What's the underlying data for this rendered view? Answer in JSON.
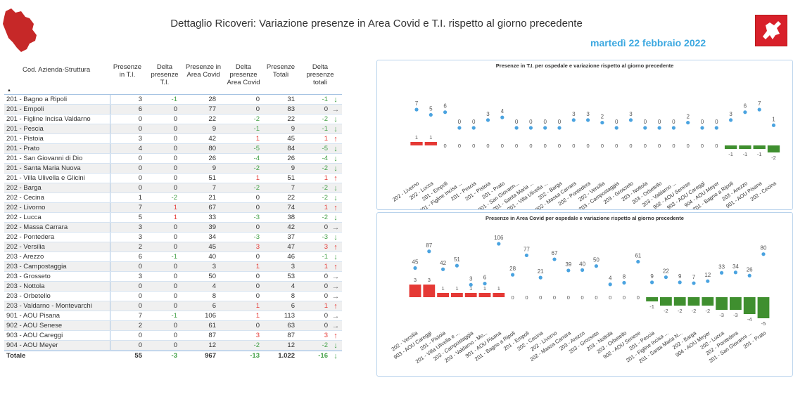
{
  "header": {
    "title": "Dettaglio Ricoveri: Variazione presenze in Area Covid e T.I. rispetto al giorno precedente",
    "date": "martedì 22 febbraio 2022"
  },
  "colors": {
    "accent": "#3aa7e0",
    "positive": "#e53935",
    "negative": "#43a047",
    "bar_red": "#e53935",
    "bar_green": "#3f8f2f",
    "dot": "#4aa3e0"
  },
  "table": {
    "headers": {
      "name": "Cod. Azienda-Struttura",
      "ti": "Presenze in T.I.",
      "dti": "Delta presenze T.I.",
      "ac": "Presenze in Area Covid",
      "dac": "Delta presenze Area Covid",
      "tot": "Presenze Totali",
      "dtot": "Delta presenze totali"
    },
    "rows": [
      {
        "name": "201 - Bagno a Ripoli",
        "ti": "3",
        "dti": "-1",
        "ac": "28",
        "dac": "0",
        "tot": "31",
        "dtot": "-1",
        "trend": "down"
      },
      {
        "name": "201 - Empoli",
        "ti": "6",
        "dti": "0",
        "ac": "77",
        "dac": "0",
        "tot": "83",
        "dtot": "0",
        "trend": "flat"
      },
      {
        "name": "201 - Figline Incisa Valdarno",
        "ti": "0",
        "dti": "0",
        "ac": "22",
        "dac": "-2",
        "tot": "22",
        "dtot": "-2",
        "trend": "down"
      },
      {
        "name": "201 - Pescia",
        "ti": "0",
        "dti": "0",
        "ac": "9",
        "dac": "-1",
        "tot": "9",
        "dtot": "-1",
        "trend": "down"
      },
      {
        "name": "201 - Pistoia",
        "ti": "3",
        "dti": "0",
        "ac": "42",
        "dac": "1",
        "tot": "45",
        "dtot": "1",
        "trend": "up"
      },
      {
        "name": "201 - Prato",
        "ti": "4",
        "dti": "0",
        "ac": "80",
        "dac": "-5",
        "tot": "84",
        "dtot": "-5",
        "trend": "down"
      },
      {
        "name": "201 - San Giovanni di Dio",
        "ti": "0",
        "dti": "0",
        "ac": "26",
        "dac": "-4",
        "tot": "26",
        "dtot": "-4",
        "trend": "down"
      },
      {
        "name": "201 - Santa Maria Nuova",
        "ti": "0",
        "dti": "0",
        "ac": "9",
        "dac": "-2",
        "tot": "9",
        "dtot": "-2",
        "trend": "down"
      },
      {
        "name": "201 - Villa Ulivella e Glicini",
        "ti": "0",
        "dti": "0",
        "ac": "51",
        "dac": "1",
        "tot": "51",
        "dtot": "1",
        "trend": "up"
      },
      {
        "name": "202 - Barga",
        "ti": "0",
        "dti": "0",
        "ac": "7",
        "dac": "-2",
        "tot": "7",
        "dtot": "-2",
        "trend": "down"
      },
      {
        "name": "202 - Cecina",
        "ti": "1",
        "dti": "-2",
        "ac": "21",
        "dac": "0",
        "tot": "22",
        "dtot": "-2",
        "trend": "down"
      },
      {
        "name": "202 - Livorno",
        "ti": "7",
        "dti": "1",
        "ac": "67",
        "dac": "0",
        "tot": "74",
        "dtot": "1",
        "trend": "up"
      },
      {
        "name": "202 - Lucca",
        "ti": "5",
        "dti": "1",
        "ac": "33",
        "dac": "-3",
        "tot": "38",
        "dtot": "-2",
        "trend": "down"
      },
      {
        "name": "202 - Massa Carrara",
        "ti": "3",
        "dti": "0",
        "ac": "39",
        "dac": "0",
        "tot": "42",
        "dtot": "0",
        "trend": "flat"
      },
      {
        "name": "202 - Pontedera",
        "ti": "3",
        "dti": "0",
        "ac": "34",
        "dac": "-3",
        "tot": "37",
        "dtot": "-3",
        "trend": "down"
      },
      {
        "name": "202 - Versilia",
        "ti": "2",
        "dti": "0",
        "ac": "45",
        "dac": "3",
        "tot": "47",
        "dtot": "3",
        "trend": "up"
      },
      {
        "name": "203 - Arezzo",
        "ti": "6",
        "dti": "-1",
        "ac": "40",
        "dac": "0",
        "tot": "46",
        "dtot": "-1",
        "trend": "down"
      },
      {
        "name": "203 - Campostaggia",
        "ti": "0",
        "dti": "0",
        "ac": "3",
        "dac": "1",
        "tot": "3",
        "dtot": "1",
        "trend": "up"
      },
      {
        "name": "203 - Grosseto",
        "ti": "3",
        "dti": "0",
        "ac": "50",
        "dac": "0",
        "tot": "53",
        "dtot": "0",
        "trend": "flat"
      },
      {
        "name": "203 - Nottola",
        "ti": "0",
        "dti": "0",
        "ac": "4",
        "dac": "0",
        "tot": "4",
        "dtot": "0",
        "trend": "flat"
      },
      {
        "name": "203 - Orbetello",
        "ti": "0",
        "dti": "0",
        "ac": "8",
        "dac": "0",
        "tot": "8",
        "dtot": "0",
        "trend": "flat"
      },
      {
        "name": "203 - Valdarno - Montevarchi",
        "ti": "0",
        "dti": "0",
        "ac": "6",
        "dac": "1",
        "tot": "6",
        "dtot": "1",
        "trend": "up"
      },
      {
        "name": "901 - AOU Pisana",
        "ti": "7",
        "dti": "-1",
        "ac": "106",
        "dac": "1",
        "tot": "113",
        "dtot": "0",
        "trend": "flat"
      },
      {
        "name": "902 - AOU Senese",
        "ti": "2",
        "dti": "0",
        "ac": "61",
        "dac": "0",
        "tot": "63",
        "dtot": "0",
        "trend": "flat"
      },
      {
        "name": "903 - AOU Careggi",
        "ti": "0",
        "dti": "0",
        "ac": "87",
        "dac": "3",
        "tot": "87",
        "dtot": "3",
        "trend": "up"
      },
      {
        "name": "904 - AOU Meyer",
        "ti": "0",
        "dti": "0",
        "ac": "12",
        "dac": "-2",
        "tot": "12",
        "dtot": "-2",
        "trend": "down"
      }
    ],
    "total": {
      "name": "Totale",
      "ti": "55",
      "dti": "-3",
      "ac": "967",
      "dac": "-13",
      "tot": "1.022",
      "dtot": "-16",
      "trend": "down"
    }
  },
  "chart_data": [
    {
      "type": "bar",
      "title": "Presenze in T.I. per ospedale e variazione rispetto al giorno precedente",
      "categories": [
        "202 - Livorno",
        "202 - Lucca",
        "201 - Empoli",
        "201 - Figline Incisa ...",
        "201 - Pescia",
        "201 - Pistoia",
        "201 - Prato",
        "201 - San Giovann...",
        "201 - Santa Maria ...",
        "201 - Villa Ulivella ...",
        "202 - Barga",
        "202 - Massa Carrara",
        "202 - Pontedera",
        "202 - Versilia",
        "203 - Campostaggia",
        "203 - Grosseto",
        "203 - Nottola",
        "203 - Orbetello",
        "203 - Valdarno ...",
        "902 - AOU Senese",
        "903 - AOU Careggi",
        "904 - AOU Meyer",
        "201 - Bagno a Ripoli",
        "203 - Arezzo",
        "901 - AOU Pisana",
        "202 - Cecina"
      ],
      "series": [
        {
          "name": "Presenze",
          "kind": "dot",
          "values": [
            7,
            5,
            6,
            0,
            0,
            3,
            4,
            0,
            0,
            0,
            0,
            3,
            3,
            2,
            0,
            3,
            0,
            0,
            0,
            2,
            0,
            0,
            3,
            6,
            7,
            1
          ]
        },
        {
          "name": "Delta",
          "kind": "bar",
          "values": [
            1,
            1,
            0,
            0,
            0,
            0,
            0,
            0,
            0,
            0,
            0,
            0,
            0,
            0,
            0,
            0,
            0,
            0,
            0,
            0,
            0,
            0,
            -1,
            -1,
            -1,
            -2
          ]
        }
      ]
    },
    {
      "type": "bar",
      "title": "Presenze in Area Covid per ospedale e variazione rispetto al giorno precedente",
      "categories": [
        "202 - Versilia",
        "903 - AOU Careggi",
        "201 - Pistoia",
        "201 - Villa Ulivella e ...",
        "203 - Campostaggia",
        "203 - Valdarno - Mo...",
        "901 - AOU Pisana",
        "201 - Bagno a Ripoli",
        "201 - Empoli",
        "202 - Cecina",
        "202 - Livorno",
        "202 - Massa Carrara",
        "203 - Arezzo",
        "203 - Grosseto",
        "203 - Nottola",
        "203 - Orbetello",
        "902 - AOU Senese",
        "201 - Pescia",
        "201 - Figline Incisa ...",
        "201 - Santa Maria N...",
        "202 - Barga",
        "904 - AOU Meyer",
        "202 - Lucca",
        "202 - Pontedera",
        "201 - San Giovanni ...",
        "201 - Prato"
      ],
      "series": [
        {
          "name": "Presenze",
          "kind": "dot",
          "values": [
            45,
            87,
            42,
            51,
            3,
            6,
            106,
            28,
            77,
            21,
            67,
            39,
            40,
            50,
            4,
            8,
            61,
            9,
            22,
            9,
            7,
            12,
            33,
            34,
            26,
            80
          ]
        },
        {
          "name": "Delta",
          "kind": "bar",
          "values": [
            3,
            3,
            1,
            1,
            1,
            1,
            1,
            0,
            0,
            0,
            0,
            0,
            0,
            0,
            0,
            0,
            0,
            -1,
            -2,
            -2,
            -2,
            -2,
            -3,
            -3,
            -4,
            -5
          ]
        }
      ]
    }
  ]
}
